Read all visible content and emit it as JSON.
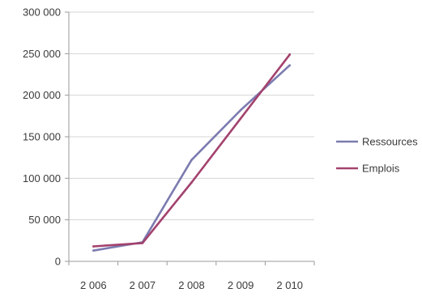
{
  "chart_data": {
    "type": "line",
    "title": "",
    "xlabel": "",
    "ylabel": "",
    "categories": [
      "2 006",
      "2 007",
      "2 008",
      "2 009",
      "2 010"
    ],
    "ylim": [
      0,
      300000
    ],
    "y_ticks": [
      0,
      50000,
      100000,
      150000,
      200000,
      250000,
      300000
    ],
    "y_tick_labels": [
      "0",
      "50 000",
      "100 000",
      "150 000",
      "200 000",
      "250 000",
      "300 000"
    ],
    "grid": "horizontal",
    "legend_position": "right",
    "series": [
      {
        "name": "Ressources",
        "color": "#7b7bb0",
        "values": [
          13000,
          23000,
          122000,
          182000,
          236000
        ]
      },
      {
        "name": "Emplois",
        "color": "#a3426e",
        "values": [
          18000,
          22000,
          95000,
          172000,
          249000
        ]
      }
    ]
  }
}
